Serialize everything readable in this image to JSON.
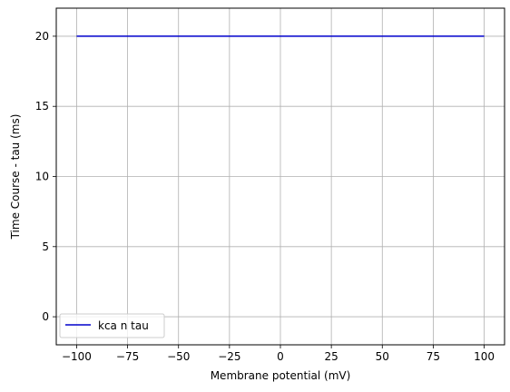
{
  "chart_data": {
    "type": "line",
    "title": "",
    "xlabel": "Membrane potential (mV)",
    "ylabel": "Time Course - tau (ms)",
    "xlim": [
      -110,
      110
    ],
    "ylim": [
      -2,
      22
    ],
    "xticks": [
      -100,
      -75,
      -50,
      -25,
      0,
      25,
      50,
      75,
      100
    ],
    "xtick_labels": [
      "−100",
      "−75",
      "−50",
      "−25",
      "0",
      "25",
      "50",
      "75",
      "100"
    ],
    "yticks": [
      0,
      5,
      10,
      15,
      20
    ],
    "ytick_labels": [
      "0",
      "5",
      "10",
      "15",
      "20"
    ],
    "grid": true,
    "legend_position": "lower-left",
    "series": [
      {
        "name": "kca n tau",
        "color": "#0000cc",
        "x": [
          -100,
          100
        ],
        "y": [
          20,
          20
        ]
      }
    ]
  }
}
